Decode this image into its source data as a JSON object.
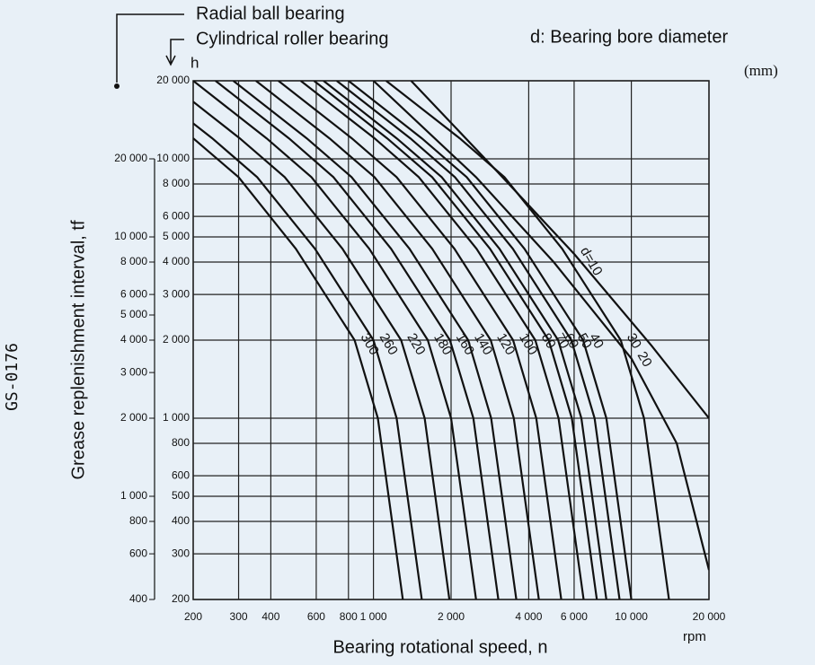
{
  "document_code": "GS-0176",
  "chart_data": {
    "type": "line",
    "y2_name": "Radial ball bearing",
    "y_name": "Cylindrical roller bearing",
    "legend_title": "d: Bearing bore diameter",
    "unit": "(mm)",
    "y_unit": "h",
    "x_unit": "rpm",
    "y_label": "Grease replenishment interval, tf",
    "x_label": "Bearing rotational speed, n",
    "log_x": true,
    "log_y": true,
    "grid": true,
    "color": "#111111",
    "xlim": [
      200,
      20000
    ],
    "ylim": [
      200,
      20000
    ],
    "y2lim": [
      400,
      40000
    ],
    "xticks": [
      200,
      300,
      400,
      600,
      800,
      {
        "value": 1000,
        "label": "1 000"
      },
      {
        "value": 2000,
        "label": "2 000"
      },
      {
        "value": 4000,
        "label": "4 000"
      },
      {
        "value": 6000,
        "label": "6 000"
      },
      {
        "value": 10000,
        "label": "10 000"
      },
      {
        "value": 20000,
        "label": "20 000"
      }
    ],
    "yticks": [
      200,
      300,
      400,
      500,
      600,
      800,
      {
        "value": 1000,
        "label": "1 000"
      },
      {
        "value": 2000,
        "label": "2 000"
      },
      {
        "value": 3000,
        "label": "3 000"
      },
      {
        "value": 4000,
        "label": "4 000"
      },
      {
        "value": 5000,
        "label": "5 000"
      },
      {
        "value": 6000,
        "label": "6 000"
      },
      {
        "value": 8000,
        "label": "8 000"
      },
      {
        "value": 10000,
        "label": "10 000"
      },
      {
        "value": 20000,
        "label": "20 000"
      }
    ],
    "y2ticks": [
      400,
      600,
      800,
      {
        "value": 1000,
        "label": "1 000"
      },
      {
        "value": 2000,
        "label": "2 000"
      },
      {
        "value": 3000,
        "label": "3 000"
      },
      {
        "value": 4000,
        "label": "4 000"
      },
      {
        "value": 5000,
        "label": "5 000"
      },
      {
        "value": 6000,
        "label": "6 000"
      },
      {
        "value": 8000,
        "label": "8 000"
      },
      {
        "value": 10000,
        "label": "10 000"
      },
      {
        "value": 20000,
        "label": "20 000"
      }
    ],
    "series": [
      {
        "name": "d=10",
        "x": [
          1400,
          3000,
          6000,
          12000,
          20000
        ],
        "values": [
          20000,
          9000,
          4300,
          1900,
          1000
        ]
      },
      {
        "name": "20",
        "x": [
          1000,
          2500,
          5000,
          10000,
          15000,
          20000
        ],
        "values": [
          20000,
          8500,
          4000,
          1700,
          800,
          260
        ]
      },
      {
        "name": "30",
        "x": [
          1120,
          2160,
          3220,
          5390,
          9100,
          11200,
          14000
        ],
        "values": [
          20000,
          12000,
          8500,
          4500,
          2000,
          1000,
          200
        ]
      },
      {
        "name": "40",
        "x": [
          800,
          1540,
          2300,
          3850,
          6500,
          8000,
          10000
        ],
        "values": [
          20000,
          12000,
          8500,
          4500,
          2000,
          1000,
          200
        ]
      },
      {
        "name": "50",
        "x": [
          720,
          1390,
          2070,
          3470,
          5850,
          7200,
          9000
        ],
        "values": [
          20000,
          12000,
          8500,
          4500,
          2000,
          1000,
          200
        ]
      },
      {
        "name": "60",
        "x": [
          640,
          1230,
          1840,
          3080,
          5200,
          6400,
          8000
        ],
        "values": [
          20000,
          12000,
          8500,
          4500,
          2000,
          1000,
          200
        ]
      },
      {
        "name": "70",
        "x": [
          588,
          1130,
          1690,
          2830,
          4780,
          5880,
          7350
        ],
        "values": [
          20000,
          12000,
          8500,
          4500,
          2000,
          1000,
          200
        ]
      },
      {
        "name": "80",
        "x": [
          522,
          1010,
          1500,
          2510,
          4240,
          5220,
          6530
        ],
        "values": [
          20000,
          12000,
          8500,
          4500,
          2000,
          1000,
          200
        ]
      },
      {
        "name": "100",
        "x": [
          428,
          824,
          1230,
          2060,
          3480,
          4280,
          5350
        ],
        "values": [
          20000,
          12000,
          8500,
          4500,
          2000,
          1000,
          200
        ]
      },
      {
        "name": "120",
        "x": [
          350,
          675,
          1010,
          1690,
          2850,
          3500,
          4380
        ],
        "values": [
          20000,
          12000,
          8500,
          4500,
          2000,
          1000,
          200
        ]
      },
      {
        "name": "140",
        "x": [
          286,
          551,
          823,
          1380,
          2330,
          2860,
          3580
        ],
        "values": [
          20000,
          12000,
          8500,
          4500,
          2000,
          1000,
          200
        ]
      },
      {
        "name": "160",
        "x": [
          244,
          470,
          700,
          1170,
          1980,
          2440,
          3050
        ],
        "values": [
          20000,
          12000,
          8500,
          4500,
          2000,
          1000,
          200
        ]
      },
      {
        "name": "180",
        "x": [
          200,
          385,
          575,
          963,
          1625,
          2000,
          2500
        ],
        "values": [
          20000,
          12000,
          8500,
          4500,
          2000,
          1000,
          200
        ]
      },
      {
        "name": "220",
        "x": [
          200,
          303,
          453,
          758,
          1280,
          1580,
          1970
        ],
        "values": [
          16600,
          12000,
          8500,
          4500,
          2000,
          1000,
          200
        ]
      },
      {
        "name": "260",
        "x": [
          200,
          237,
          354,
          593,
          1000,
          1230,
          1540
        ],
        "values": [
          13700,
          12000,
          8500,
          4500,
          2000,
          1000,
          200
        ]
      },
      {
        "name": "300",
        "x": [
          200,
          300,
          500,
          845,
          1040,
          1300
        ],
        "values": [
          12000,
          8500,
          4500,
          2000,
          1000,
          200
        ]
      }
    ]
  }
}
